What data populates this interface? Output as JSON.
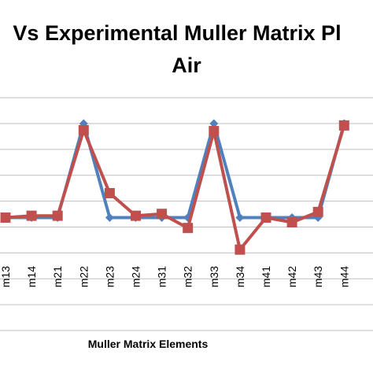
{
  "chart_data": {
    "type": "line",
    "title_line1": "Vs Experimental Muller Matrix Pl",
    "title_line2": "Air",
    "xlabel": "Muller Matrix Elements",
    "categories": [
      "m13",
      "m14",
      "m21",
      "m22",
      "m23",
      "m24",
      "m31",
      "m32",
      "m33",
      "m34",
      "m41",
      "m42",
      "m43",
      "m44"
    ],
    "ylim": [
      -1.2,
      1.0
    ],
    "grid": true,
    "series": [
      {
        "color": "#4F81BD",
        "marker": "diamond",
        "values": [
          0,
          0,
          0,
          1.0,
          0,
          0,
          0,
          0,
          1.0,
          0,
          0,
          0,
          0,
          1.0
        ]
      },
      {
        "color": "#C0504D",
        "marker": "square",
        "values": [
          0,
          0.02,
          0.02,
          0.93,
          0.26,
          0.02,
          0.04,
          -0.11,
          0.92,
          -0.34,
          0,
          -0.05,
          0.06,
          0.98
        ]
      }
    ]
  }
}
